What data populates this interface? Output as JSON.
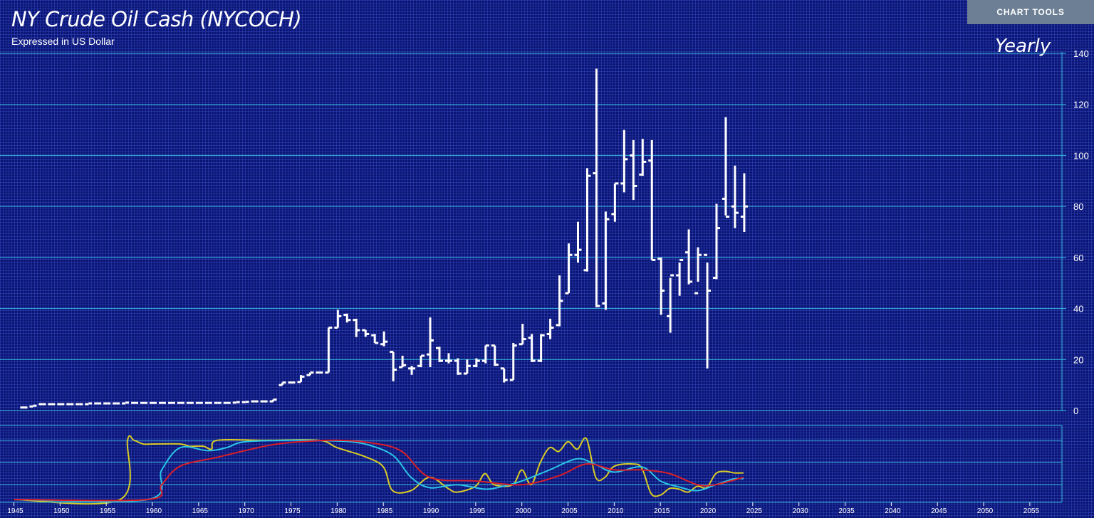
{
  "header": {
    "title": "NY Crude Oil Cash (NYCOCH)",
    "subtitle": "Expressed in US Dollar",
    "chart_tools_label": "CHART TOOLS",
    "period_label": "Yearly"
  },
  "colors": {
    "background": "#0b1575",
    "gridline": "#35b8dc",
    "price_bars": "#ffffff",
    "indicator_red": "#d91e2a",
    "indicator_cyan": "#2ac4e6",
    "indicator_yellow": "#d9cc25"
  },
  "chart_data": [
    {
      "type": "ohlc",
      "title": "NY Crude Oil Cash (NYCOCH)",
      "subtitle": "Expressed in US Dollar",
      "period": "Yearly",
      "xlabel": "",
      "ylabel": "",
      "xlim": [
        1945,
        2058
      ],
      "ylim": [
        0,
        140
      ],
      "yticks": [
        0,
        20,
        40,
        60,
        80,
        100,
        120,
        140
      ],
      "xticks": [
        1945,
        1950,
        1955,
        1960,
        1965,
        1970,
        1975,
        1980,
        1985,
        1990,
        1995,
        2000,
        2005,
        2010,
        2015,
        2020,
        2025,
        2030,
        2035,
        2040,
        2045,
        2050,
        2055
      ],
      "grid": true,
      "legend": "none",
      "fields": [
        "year",
        "open",
        "high",
        "low",
        "close"
      ],
      "bars": [
        [
          1946,
          1.2,
          1.2,
          1.2,
          1.2
        ],
        [
          1947,
          1.6,
          1.9,
          1.6,
          1.9
        ],
        [
          1948,
          2.5,
          2.5,
          2.5,
          2.5
        ],
        [
          1949,
          2.5,
          2.5,
          2.5,
          2.5
        ],
        [
          1950,
          2.5,
          2.5,
          2.5,
          2.5
        ],
        [
          1951,
          2.5,
          2.5,
          2.5,
          2.5
        ],
        [
          1952,
          2.5,
          2.5,
          2.5,
          2.5
        ],
        [
          1953,
          2.5,
          2.8,
          2.5,
          2.8
        ],
        [
          1954,
          2.8,
          2.8,
          2.8,
          2.8
        ],
        [
          1955,
          2.8,
          2.8,
          2.8,
          2.8
        ],
        [
          1956,
          2.8,
          2.8,
          2.8,
          2.8
        ],
        [
          1957,
          2.8,
          3.1,
          2.8,
          3.1
        ],
        [
          1958,
          3.0,
          3.0,
          3.0,
          3.0
        ],
        [
          1959,
          3.0,
          3.0,
          3.0,
          3.0
        ],
        [
          1960,
          3.0,
          3.0,
          3.0,
          3.0
        ],
        [
          1961,
          3.0,
          3.0,
          3.0,
          3.0
        ],
        [
          1962,
          3.0,
          3.0,
          3.0,
          3.0
        ],
        [
          1963,
          3.0,
          3.0,
          3.0,
          3.0
        ],
        [
          1964,
          3.0,
          3.0,
          3.0,
          3.0
        ],
        [
          1965,
          3.0,
          3.0,
          3.0,
          3.0
        ],
        [
          1966,
          3.0,
          3.0,
          3.0,
          3.0
        ],
        [
          1967,
          3.0,
          3.0,
          3.0,
          3.0
        ],
        [
          1968,
          3.0,
          3.0,
          3.0,
          3.0
        ],
        [
          1969,
          3.1,
          3.3,
          3.1,
          3.3
        ],
        [
          1970,
          3.3,
          3.4,
          3.3,
          3.4
        ],
        [
          1971,
          3.6,
          3.6,
          3.6,
          3.6
        ],
        [
          1972,
          3.6,
          3.6,
          3.6,
          3.6
        ],
        [
          1973,
          3.6,
          4.3,
          3.6,
          4.3
        ],
        [
          1974,
          10,
          11,
          10,
          11
        ],
        [
          1975,
          11,
          11,
          11,
          11
        ],
        [
          1976,
          11.2,
          13.9,
          11.2,
          13.3
        ],
        [
          1977,
          13.9,
          14.9,
          13.9,
          14.9
        ],
        [
          1978,
          14.9,
          14.9,
          14.9,
          14.9
        ],
        [
          1979,
          14.9,
          32.5,
          14.9,
          32.5
        ],
        [
          1980,
          32.5,
          39.5,
          32.5,
          37.0
        ],
        [
          1981,
          37.5,
          38.0,
          34.5,
          35.5
        ],
        [
          1982,
          35.5,
          36.0,
          28.8,
          31.5
        ],
        [
          1983,
          31.5,
          31.6,
          28.9,
          30.0
        ],
        [
          1984,
          29.5,
          30.0,
          26.5,
          26.5
        ],
        [
          1985,
          26.0,
          31.0,
          25.2,
          27.0
        ],
        [
          1986,
          23.0,
          23.0,
          11.5,
          16.0
        ],
        [
          1987,
          17.0,
          21.5,
          17.0,
          17.8
        ],
        [
          1988,
          16.5,
          17.5,
          14.0,
          16.5
        ],
        [
          1989,
          17.5,
          21.5,
          17.0,
          21.5
        ],
        [
          1990,
          22.0,
          36.5,
          17.0,
          27.5
        ],
        [
          1991,
          24.5,
          25.0,
          19.0,
          19.5
        ],
        [
          1992,
          19.5,
          22.5,
          18.5,
          19.5
        ],
        [
          1993,
          19.5,
          20.5,
          14.0,
          14.5
        ],
        [
          1994,
          14.5,
          20.0,
          14.5,
          17.5
        ],
        [
          1995,
          17.5,
          20.5,
          17.0,
          19.5
        ],
        [
          1996,
          19.5,
          25.5,
          18.5,
          25.5
        ],
        [
          1997,
          25.5,
          25.5,
          17.5,
          18.0
        ],
        [
          1998,
          16.5,
          16.5,
          11.0,
          12.0
        ],
        [
          1999,
          12.0,
          26.5,
          12.0,
          25.5
        ],
        [
          2000,
          26.0,
          34.0,
          26.0,
          28.0
        ],
        [
          2001,
          28.5,
          30.0,
          19.0,
          19.5
        ],
        [
          2002,
          19.5,
          30.0,
          19.0,
          29.5
        ],
        [
          2003,
          30.0,
          36.0,
          28.0,
          32.5
        ],
        [
          2004,
          33.5,
          53.0,
          33.0,
          43.0
        ],
        [
          2005,
          46.0,
          65.5,
          46.0,
          61.0
        ],
        [
          2006,
          61.0,
          74.0,
          58.0,
          63.0
        ],
        [
          2007,
          55.0,
          95.0,
          54.5,
          92.0
        ],
        [
          2008,
          93.0,
          134.0,
          40.5,
          41.0
        ],
        [
          2009,
          42.0,
          78.0,
          39.5,
          75.0
        ],
        [
          2010,
          77.0,
          89.0,
          74.0,
          89.0
        ],
        [
          2011,
          89.0,
          110.0,
          85.5,
          98.5
        ],
        [
          2012,
          100.0,
          106.0,
          82.5,
          88.0
        ],
        [
          2013,
          92.5,
          106.5,
          92.0,
          97.5
        ],
        [
          2014,
          98.0,
          106.0,
          59.0,
          59.0
        ],
        [
          2015,
          59.5,
          60.0,
          37.5,
          47.0
        ],
        [
          2016,
          37.0,
          52.0,
          30.5,
          53.0
        ],
        [
          2017,
          53.0,
          58.0,
          45.0,
          59.0
        ],
        [
          2018,
          62.0,
          71.0,
          49.5,
          50.5
        ],
        [
          2019,
          46.0,
          64.0,
          50.5,
          61.0
        ],
        [
          2020,
          61.0,
          58.0,
          16.5,
          47.0
        ],
        [
          2021,
          52.0,
          81.0,
          51.5,
          71.5
        ],
        [
          2022,
          83.0,
          115.0,
          76.5,
          76.0
        ],
        [
          2023,
          80.0,
          96.0,
          71.5,
          77.5
        ],
        [
          2024,
          76.0,
          93.0,
          70.0,
          80.0
        ]
      ]
    },
    {
      "type": "line",
      "title": "",
      "xlim": [
        1945,
        2058
      ],
      "ylim": [
        0,
        100
      ],
      "hlines": [
        20,
        50,
        80
      ],
      "series": [
        {
          "color": "#d9cc25",
          "x": [
            1945,
            1956.5,
            1957.3,
            1958,
            1959,
            1960,
            1963,
            1964,
            1965.5,
            1966.4,
            1967,
            1972,
            1978,
            1980,
            1983,
            1985,
            1986,
            1988,
            1990,
            1992,
            1993,
            1995,
            1996,
            1997,
            1999,
            2000,
            2001,
            2002,
            2003,
            2004,
            2005,
            2006,
            2007,
            2008,
            2009,
            2010,
            2012,
            2013,
            2014,
            2015,
            2016,
            2017,
            2018,
            2019,
            2020,
            2021,
            2022,
            2023,
            2024
          ],
          "y": [
            0,
            0,
            80,
            80,
            75,
            75,
            75,
            72,
            72,
            68,
            80,
            80,
            80,
            70,
            58,
            44,
            12,
            12,
            30,
            15,
            10,
            18,
            35,
            20,
            20,
            40,
            20,
            50,
            70,
            65,
            78,
            68,
            82,
            30,
            30,
            45,
            48,
            42,
            8,
            6,
            15,
            14,
            10,
            18,
            16,
            35,
            38,
            36,
            36
          ]
        },
        {
          "color": "#2ac4e6",
          "x": [
            1945,
            1959.5,
            1961,
            1963,
            1966,
            1968,
            1970,
            1975,
            1980,
            1983,
            1986,
            1988,
            1990,
            1993,
            1996,
            1998,
            2000,
            2003,
            2006,
            2008,
            2010,
            2013,
            2015,
            2017,
            2019,
            2021,
            2023,
            2024
          ],
          "y": [
            0,
            0,
            40,
            70,
            66,
            70,
            78,
            80,
            79,
            75,
            60,
            30,
            16,
            20,
            14,
            18,
            25,
            40,
            55,
            47,
            37,
            44,
            25,
            17,
            12,
            20,
            28,
            28
          ]
        },
        {
          "color": "#d91e2a",
          "x": [
            1945,
            1959.5,
            1961,
            1963,
            1967,
            1970,
            1973,
            1976,
            1980,
            1984,
            1987,
            1990,
            1995,
            2000,
            2004,
            2007,
            2010,
            2013,
            2016,
            2019,
            2021,
            2024
          ],
          "y": [
            0,
            0,
            20,
            45,
            57,
            66,
            74,
            78,
            80,
            76,
            65,
            30,
            25,
            20,
            32,
            48,
            40,
            40,
            35,
            20,
            20,
            30
          ]
        }
      ]
    }
  ]
}
